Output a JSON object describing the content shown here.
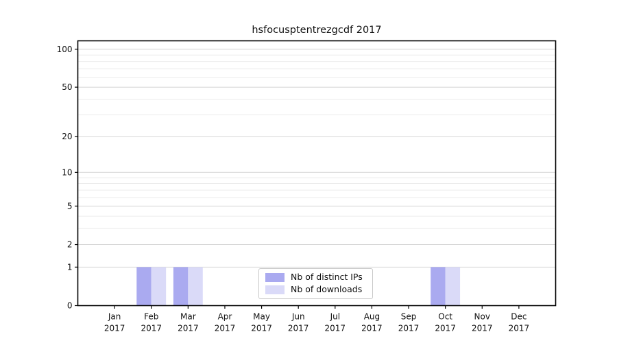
{
  "title": "hsfocusptentrezgcdf 2017",
  "chart_data": {
    "type": "bar",
    "title": "hsfocusptentrezgcdf 2017",
    "year": "2017",
    "months": [
      "Jan",
      "Feb",
      "Mar",
      "Apr",
      "May",
      "Jun",
      "Jul",
      "Aug",
      "Sep",
      "Oct",
      "Nov",
      "Dec"
    ],
    "series": [
      {
        "name": "Nb of distinct IPs",
        "color": "#aaaaf0",
        "values": [
          0,
          1,
          1,
          0,
          0,
          0,
          0,
          0,
          0,
          1,
          0,
          0
        ]
      },
      {
        "name": "Nb of downloads",
        "color": "#dadaf8",
        "values": [
          0,
          1,
          1,
          0,
          0,
          0,
          0,
          0,
          0,
          1,
          0,
          0
        ]
      }
    ],
    "y_axis": {
      "scale": "log1p",
      "major_ticks": [
        0,
        1,
        2,
        5,
        10,
        20,
        50,
        100
      ],
      "minor_gridlines": [
        3,
        4,
        6,
        7,
        8,
        9,
        30,
        40,
        60,
        70,
        80,
        90
      ],
      "top_value": 116.5,
      "ylim": [
        0,
        116.5
      ]
    },
    "x_axis": {
      "tick_label_format": "month over year"
    },
    "legend": {
      "position": "lower-center"
    },
    "grid": true,
    "colors": {
      "frame": "#000000",
      "major_grid": "#d4d4d4",
      "minor_grid": "#ececec",
      "text": "#111111"
    }
  }
}
